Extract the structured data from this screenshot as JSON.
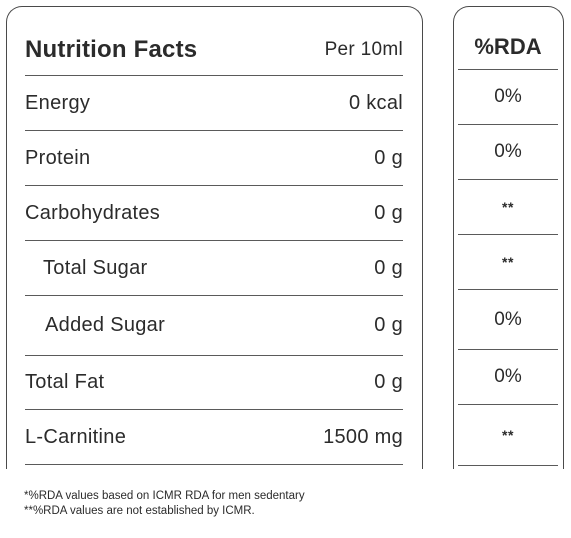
{
  "header": {
    "title": "Nutrition Facts",
    "per": "Per 10ml",
    "rda": "%RDA"
  },
  "rows": [
    {
      "label": "Energy",
      "value": "0 kcal",
      "rda": "0%"
    },
    {
      "label": "Protein",
      "value": "0 g",
      "rda": "0%"
    },
    {
      "label": "Carbohydrates",
      "value": "0 g",
      "rda": "**"
    },
    {
      "label": "Total Sugar",
      "value": "0 g",
      "rda": "**"
    },
    {
      "label": "Added Sugar",
      "value": "0 g",
      "rda": "0%"
    },
    {
      "label": "Total Fat",
      "value": "0 g",
      "rda": "0%"
    },
    {
      "label": "L-Carnitine",
      "value": "1500 mg",
      "rda": "**"
    }
  ],
  "footnotes": [
    "*%RDA values based on ICMR RDA for men sedentary",
    "**%RDA values are not established by ICMR."
  ]
}
